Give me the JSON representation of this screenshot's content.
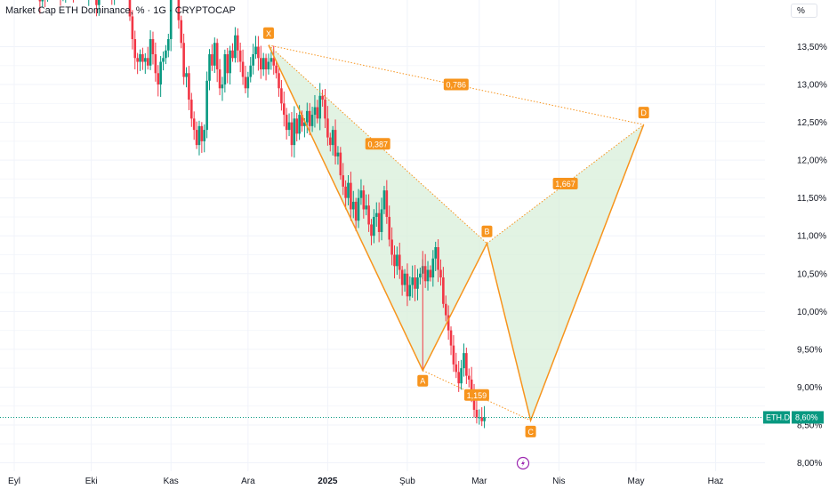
{
  "header": {
    "title": "Market Cap ETH Dominance, % · 1G · CRYPTOCAP",
    "unit_button": "%"
  },
  "colors": {
    "up": "#089981",
    "down": "#f23645",
    "pattern": "#f7941d",
    "pattern_fill": "#d8efd9",
    "price_line": "#089981",
    "flash_icon": "#9c27b0"
  },
  "chart_data": {
    "type": "candlestick",
    "title": "Market Cap ETH Dominance, % · 1G · CRYPTOCAP",
    "y_unit": "%",
    "ylim": [
      7.9,
      14.1
    ],
    "y_ticks": [
      "13,50%",
      "13,00%",
      "12,50%",
      "12,00%",
      "11,50%",
      "11,00%",
      "10,50%",
      "10,00%",
      "9,50%",
      "9,00%",
      "8,50%",
      "8,00%"
    ],
    "y_tick_values": [
      13.5,
      13.0,
      12.5,
      12.0,
      11.5,
      11.0,
      10.5,
      10.0,
      9.5,
      9.0,
      8.5,
      8.0
    ],
    "x_ticks": [
      {
        "label": "Eyl",
        "day": 0,
        "bold": false
      },
      {
        "label": "Eki",
        "day": 30,
        "bold": false
      },
      {
        "label": "Kas",
        "day": 61,
        "bold": false
      },
      {
        "label": "Ara",
        "day": 91,
        "bold": false
      },
      {
        "label": "2025",
        "day": 122,
        "bold": true
      },
      {
        "label": "Şub",
        "day": 153,
        "bold": false
      },
      {
        "label": "Mar",
        "day": 181,
        "bold": false
      },
      {
        "label": "Nis",
        "day": 212,
        "bold": false
      },
      {
        "label": "May",
        "day": 242,
        "bold": false
      },
      {
        "label": "Haz",
        "day": 273,
        "bold": false
      }
    ],
    "last_value": 8.6,
    "last_value_label": "8,60%",
    "symbol_label": "ETH.D",
    "candles_daily_closes": [
      14.65,
      14.55,
      14.6,
      14.5,
      14.45,
      14.3,
      14.55,
      14.4,
      14.45,
      14.3,
      14.1,
      14.35,
      14.15,
      14.2,
      14.3,
      14.6,
      14.55,
      14.4,
      14.2,
      14.25,
      14.3,
      14.45,
      14.35,
      14.25,
      14.35,
      14.3,
      14.4,
      14.3,
      14.2,
      14.35,
      14.4,
      14.25,
      14.05,
      14.2,
      14.35,
      14.3,
      14.35,
      14.25,
      14.2,
      14.3,
      14.55,
      14.6,
      14.45,
      14.55,
      14.3,
      13.9,
      13.6,
      13.35,
      13.3,
      13.4,
      13.3,
      13.35,
      13.25,
      13.6,
      13.4,
      13.15,
      13.0,
      13.3,
      13.35,
      13.45,
      13.6,
      14.35,
      14.7,
      14.4,
      13.85,
      13.55,
      13.1,
      13.15,
      12.8,
      12.55,
      12.4,
      12.2,
      12.45,
      12.25,
      12.4,
      13.05,
      13.4,
      13.25,
      13.55,
      13.2,
      12.95,
      13.0,
      13.4,
      13.15,
      13.45,
      13.35,
      13.65,
      13.45,
      13.3,
      13.1,
      12.95,
      13.1,
      13.25,
      13.4,
      13.5,
      13.35,
      13.2,
      13.35,
      13.2,
      13.3,
      13.35,
      13.25,
      13.15,
      12.95,
      12.75,
      12.6,
      12.4,
      12.5,
      12.2,
      12.55,
      12.35,
      12.6,
      12.45,
      12.5,
      12.65,
      12.45,
      12.6,
      12.7,
      12.55,
      12.85,
      12.8,
      12.55,
      12.3,
      12.2,
      12.4,
      12.05,
      12.1,
      11.8,
      11.65,
      11.5,
      11.7,
      11.35,
      11.45,
      11.2,
      11.5,
      11.6,
      11.35,
      11.4,
      11.15,
      11.0,
      11.25,
      11.3,
      11.05,
      11.35,
      11.6,
      11.25,
      10.95,
      10.75,
      10.6,
      10.75,
      10.55,
      10.35,
      10.5,
      10.2,
      10.35,
      10.45,
      10.3,
      10.45,
      10.5,
      10.6,
      10.4,
      10.55,
      10.45,
      10.7,
      10.85,
      10.55,
      10.45,
      10.1,
      9.95,
      9.75,
      9.55,
      9.3,
      9.2,
      9.05,
      9.25,
      9.45,
      9.15,
      9.1,
      8.95,
      8.7,
      8.6,
      8.6,
      8.55,
      8.6
    ],
    "harmonic_pattern": {
      "points": [
        {
          "label": "X",
          "day": 99,
          "value": 13.52
        },
        {
          "label": "A",
          "day": 159,
          "value": 9.22
        },
        {
          "label": "B",
          "day": 184,
          "value": 10.9
        },
        {
          "label": "C",
          "day": 201,
          "value": 8.56
        },
        {
          "label": "D",
          "day": 245,
          "value": 12.47
        }
      ],
      "ratios": [
        {
          "label": "0,786",
          "between": "X-D"
        },
        {
          "label": "0,387",
          "between": "X-B"
        },
        {
          "label": "1,667",
          "between": "B-D"
        },
        {
          "label": "1,159",
          "between": "A-C"
        }
      ]
    }
  }
}
